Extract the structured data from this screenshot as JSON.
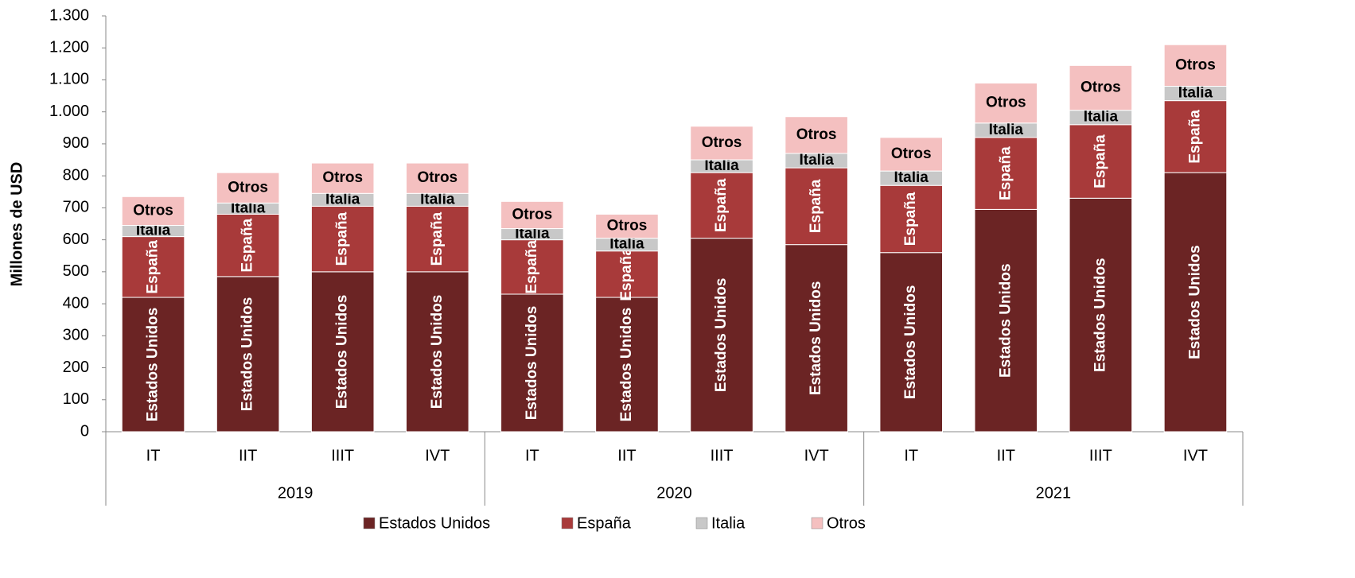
{
  "chart_data": {
    "type": "bar",
    "stacked": true,
    "y_label": "Millones de USD",
    "categories": [
      "IT",
      "IIT",
      "IIIT",
      "IVT",
      "IT",
      "IIT",
      "IIIT",
      "IVT",
      "IT",
      "IIT",
      "IIIT",
      "IVT"
    ],
    "groups": [
      "2019",
      "2020",
      "2021"
    ],
    "series": [
      {
        "name": "Estados Unidos",
        "color": "#6b2424",
        "values": [
          420,
          485,
          500,
          500,
          430,
          420,
          605,
          585,
          560,
          695,
          730,
          810
        ]
      },
      {
        "name": "España",
        "color": "#a83a3a",
        "values": [
          190,
          195,
          205,
          205,
          170,
          145,
          205,
          240,
          210,
          225,
          230,
          225
        ]
      },
      {
        "name": "Italia",
        "color": "#c8c8c8",
        "values": [
          35,
          35,
          40,
          40,
          35,
          40,
          40,
          45,
          45,
          45,
          45,
          45
        ]
      },
      {
        "name": "Otros",
        "color": "#f4c0c0",
        "values": [
          90,
          95,
          95,
          95,
          85,
          75,
          105,
          115,
          105,
          125,
          140,
          130
        ]
      }
    ],
    "ylim": [
      0,
      1300
    ],
    "yticks": [
      0,
      100,
      200,
      300,
      400,
      500,
      600,
      700,
      800,
      900,
      {
        "value": 1000,
        "label": "1.000"
      },
      {
        "value": 1100,
        "label": "1.100"
      },
      {
        "value": 1200,
        "label": "1.200"
      },
      {
        "value": 1300,
        "label": "1.300"
      }
    ],
    "legend": "bottom"
  }
}
